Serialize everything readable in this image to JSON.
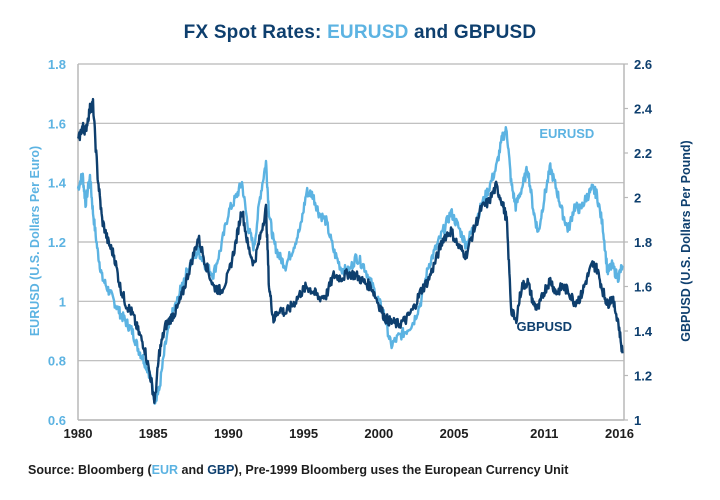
{
  "title": {
    "prefix": "FX Spot Rates: ",
    "eur": "EURUSD",
    "middle": " and ",
    "gbp": "GBPUSD"
  },
  "source": {
    "prefix": "Source: Bloomberg (",
    "eur": "EUR",
    "and": " and ",
    "gbp": "GBP",
    "suffix": "), Pre-1999 Bloomberg uses the European Currency Unit"
  },
  "colors": {
    "eurusd": "#5cb3e2",
    "gbpusd": "#0e3f6e",
    "grid": "#b8b8b8"
  },
  "chart_data": {
    "type": "line",
    "title": "FX Spot Rates: EURUSD and GBPUSD",
    "xlabel": "",
    "ylabel_left": "EURUSD (U.S. Dollars Per Euro)",
    "ylabel_right": "GBPUSD (U.S. Dollars Per Pound)",
    "xlim": [
      1980,
      2016.3
    ],
    "ylim_left": [
      0.6,
      1.8
    ],
    "ylim_right": [
      1,
      2.6
    ],
    "x_ticks": [
      {
        "value": 1980,
        "label": "1980"
      },
      {
        "value": 1985,
        "label": "1985"
      },
      {
        "value": 1990,
        "label": "1990"
      },
      {
        "value": 1995,
        "label": "1995"
      },
      {
        "value": 2000,
        "label": "2000"
      },
      {
        "value": 2005,
        "label": "2005"
      },
      {
        "value": 2011,
        "label": "2011"
      },
      {
        "value": 2016,
        "label": "2016"
      }
    ],
    "y_ticks_left": [
      "0.6",
      "0.8",
      "1",
      "1.2",
      "1.4",
      "1.6",
      "1.8"
    ],
    "y_ticks_right": [
      "1",
      "1.2",
      "1.4",
      "1.6",
      "1.8",
      "2",
      "2.2",
      "2.4",
      "2.6"
    ],
    "grid": true,
    "annotations": [
      {
        "text": "EURUSD",
        "series": "EURUSD",
        "x": 2012.5,
        "y_left": 1.55
      },
      {
        "text": "GBPUSD",
        "series": "GBPUSD",
        "x": 2011.0,
        "y_right": 1.4
      }
    ],
    "series": [
      {
        "name": "EURUSD",
        "axis": "left",
        "x": [
          1980.0,
          1980.3,
          1980.5,
          1980.8,
          1981.0,
          1981.3,
          1981.6,
          1982.0,
          1982.4,
          1982.8,
          1983.2,
          1983.6,
          1984.0,
          1984.4,
          1984.8,
          1985.1,
          1985.4,
          1985.8,
          1986.2,
          1986.6,
          1987.0,
          1987.5,
          1988.0,
          1988.5,
          1989.0,
          1989.5,
          1990.0,
          1990.5,
          1990.9,
          1991.3,
          1991.7,
          1992.1,
          1992.5,
          1992.7,
          1993.0,
          1993.4,
          1993.8,
          1994.3,
          1994.8,
          1995.2,
          1995.6,
          1996.0,
          1996.5,
          1997.0,
          1997.5,
          1998.0,
          1998.5,
          1999.0,
          1999.5,
          2000.0,
          2000.4,
          2000.8,
          2001.3,
          2001.8,
          2002.3,
          2002.8,
          2003.3,
          2003.8,
          2004.3,
          2004.8,
          2005.3,
          2005.8,
          2006.3,
          2006.8,
          2007.3,
          2007.8,
          2008.2,
          2008.5,
          2008.8,
          2009.1,
          2009.5,
          2009.9,
          2010.3,
          2010.6,
          2011.0,
          2011.4,
          2011.8,
          2012.2,
          2012.6,
          2013.0,
          2013.4,
          2013.8,
          2014.2,
          2014.5,
          2014.9,
          2015.2,
          2015.5,
          2015.9,
          2016.2
        ],
        "values": [
          1.38,
          1.43,
          1.33,
          1.42,
          1.3,
          1.17,
          1.08,
          1.04,
          1.0,
          0.96,
          0.93,
          0.9,
          0.84,
          0.8,
          0.75,
          0.67,
          0.7,
          0.85,
          0.95,
          1.0,
          1.07,
          1.13,
          1.17,
          1.12,
          1.09,
          1.18,
          1.3,
          1.35,
          1.4,
          1.25,
          1.18,
          1.35,
          1.47,
          1.3,
          1.2,
          1.15,
          1.12,
          1.18,
          1.25,
          1.37,
          1.36,
          1.3,
          1.27,
          1.17,
          1.11,
          1.1,
          1.15,
          1.12,
          1.06,
          1.0,
          0.95,
          0.85,
          0.88,
          0.9,
          0.93,
          1.0,
          1.12,
          1.18,
          1.24,
          1.3,
          1.25,
          1.19,
          1.25,
          1.32,
          1.38,
          1.45,
          1.55,
          1.58,
          1.4,
          1.32,
          1.38,
          1.45,
          1.3,
          1.23,
          1.35,
          1.45,
          1.38,
          1.3,
          1.24,
          1.32,
          1.31,
          1.35,
          1.38,
          1.36,
          1.25,
          1.1,
          1.12,
          1.08,
          1.12
        ]
      },
      {
        "name": "GBPUSD",
        "axis": "right",
        "x": [
          1980.0,
          1980.3,
          1980.5,
          1980.8,
          1981.0,
          1981.3,
          1981.6,
          1982.0,
          1982.4,
          1982.8,
          1983.2,
          1983.6,
          1984.0,
          1984.4,
          1984.8,
          1985.1,
          1985.4,
          1985.8,
          1986.2,
          1986.6,
          1987.0,
          1987.5,
          1988.0,
          1988.5,
          1989.0,
          1989.5,
          1990.0,
          1990.5,
          1990.9,
          1991.3,
          1991.7,
          1992.1,
          1992.5,
          1992.7,
          1993.0,
          1993.4,
          1993.8,
          1994.3,
          1994.8,
          1995.2,
          1995.6,
          1996.0,
          1996.5,
          1997.0,
          1997.5,
          1998.0,
          1998.5,
          1999.0,
          1999.5,
          2000.0,
          2000.4,
          2000.8,
          2001.3,
          2001.8,
          2002.3,
          2002.8,
          2003.3,
          2003.8,
          2004.3,
          2004.8,
          2005.3,
          2005.8,
          2006.3,
          2006.8,
          2007.3,
          2007.8,
          2008.2,
          2008.5,
          2008.8,
          2009.1,
          2009.5,
          2009.9,
          2010.3,
          2010.6,
          2011.0,
          2011.4,
          2011.8,
          2012.2,
          2012.6,
          2013.0,
          2013.4,
          2013.8,
          2014.2,
          2014.5,
          2014.9,
          2015.2,
          2015.5,
          2015.9,
          2016.2
        ],
        "values": [
          2.25,
          2.32,
          2.3,
          2.4,
          2.42,
          2.1,
          1.9,
          1.8,
          1.74,
          1.6,
          1.52,
          1.48,
          1.4,
          1.33,
          1.2,
          1.08,
          1.3,
          1.42,
          1.46,
          1.5,
          1.58,
          1.7,
          1.82,
          1.7,
          1.6,
          1.58,
          1.65,
          1.8,
          1.95,
          1.78,
          1.7,
          1.82,
          1.95,
          1.6,
          1.45,
          1.5,
          1.48,
          1.52,
          1.57,
          1.6,
          1.58,
          1.55,
          1.56,
          1.65,
          1.64,
          1.66,
          1.65,
          1.62,
          1.6,
          1.52,
          1.46,
          1.44,
          1.43,
          1.45,
          1.5,
          1.58,
          1.63,
          1.72,
          1.82,
          1.85,
          1.78,
          1.74,
          1.85,
          1.95,
          1.98,
          2.05,
          1.98,
          1.9,
          1.5,
          1.44,
          1.6,
          1.62,
          1.52,
          1.5,
          1.58,
          1.63,
          1.57,
          1.6,
          1.58,
          1.53,
          1.55,
          1.63,
          1.7,
          1.68,
          1.58,
          1.52,
          1.55,
          1.45,
          1.3
        ]
      }
    ]
  }
}
